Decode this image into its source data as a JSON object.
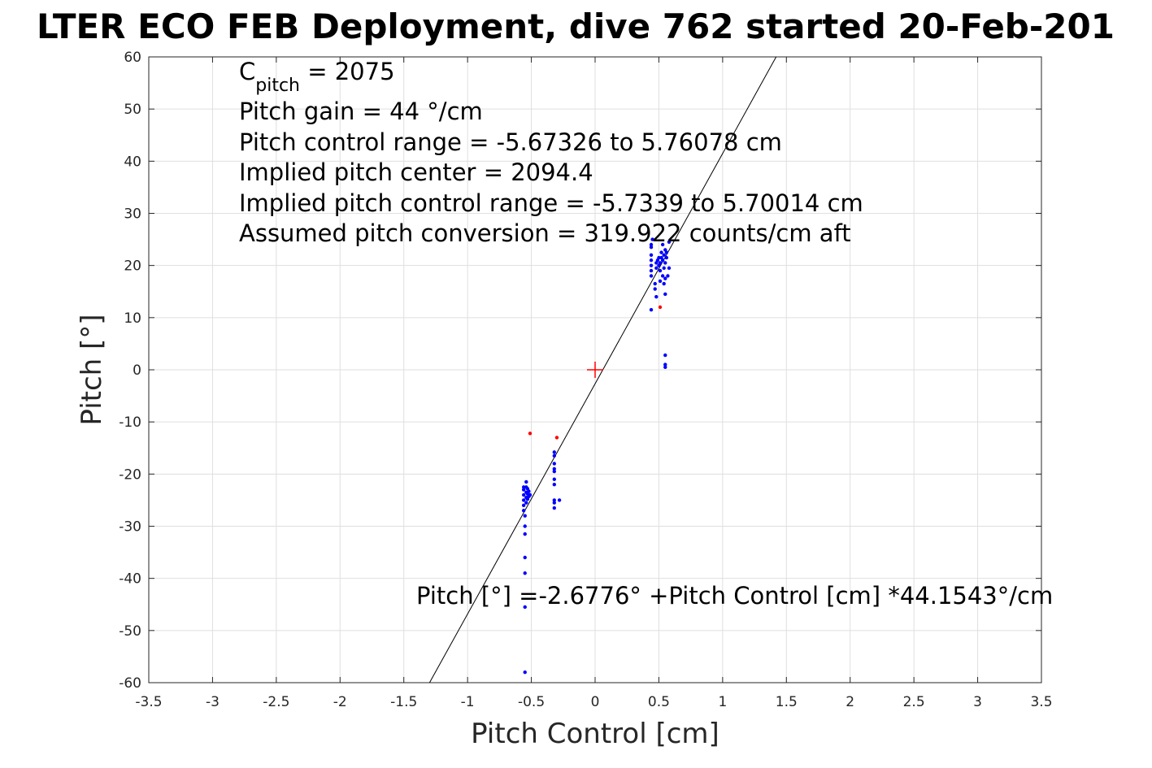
{
  "chart_data": {
    "type": "scatter",
    "title": "LTER ECO FEB Deployment, dive 762 started 20-Feb-201",
    "xlabel": "Pitch Control [cm]",
    "ylabel": "Pitch [°]",
    "xlim": [
      -3.5,
      3.5
    ],
    "ylim": [
      -60,
      60
    ],
    "grid": true,
    "xticks": [
      -3.5,
      -3,
      -2.5,
      -2,
      -1.5,
      -1,
      -0.5,
      0,
      0.5,
      1,
      1.5,
      2,
      2.5,
      3,
      3.5
    ],
    "xtick_labels": [
      "-3.5",
      "-3",
      "-2.5",
      "-2",
      "-1.5",
      "-1",
      "-0.5",
      "0",
      "0.5",
      "1",
      "1.5",
      "2",
      "2.5",
      "3",
      "3.5"
    ],
    "yticks": [
      -60,
      -50,
      -40,
      -30,
      -20,
      -10,
      0,
      10,
      20,
      30,
      40,
      50,
      60
    ],
    "ytick_labels": [
      "-60",
      "-50",
      "-40",
      "-30",
      "-20",
      "-10",
      "0",
      "10",
      "20",
      "30",
      "40",
      "50",
      "60"
    ],
    "annotations": {
      "c_pitch_main": "C",
      "c_pitch_sub": "pitch",
      "c_pitch_value": " = 2075",
      "pitch_gain": "Pitch gain = 44 °/cm",
      "control_range": "Pitch control range = -5.67326 to 5.76078 cm",
      "implied_center": "Implied pitch center = 2094.4",
      "implied_range": "Implied pitch control range = -5.7339 to 5.70014 cm",
      "assumed_conversion": "Assumed pitch conversion = 319.922 counts/cm aft",
      "fit_equation": "Pitch [°] =-2.6776° +Pitch Control [cm] *44.1543°/cm"
    },
    "fit_line": {
      "intercept": -2.6776,
      "slope": 44.1543,
      "color": "#000000"
    },
    "center_marker": {
      "x": 0,
      "y": 0,
      "color": "#ff0000"
    },
    "series": [
      {
        "color": "#0000ff",
        "points": [
          [
            -0.56,
            -22.5
          ],
          [
            -0.56,
            -23.0
          ],
          [
            -0.56,
            -24.0
          ],
          [
            -0.56,
            -25.0
          ],
          [
            -0.56,
            -26.0
          ],
          [
            -0.56,
            -27.0
          ],
          [
            -0.55,
            -28.0
          ],
          [
            -0.55,
            -30.0
          ],
          [
            -0.55,
            -31.5
          ],
          [
            -0.55,
            -36.0
          ],
          [
            -0.55,
            -39.0
          ],
          [
            -0.55,
            -45.5
          ],
          [
            -0.55,
            -58.0
          ],
          [
            -0.54,
            -21.5
          ],
          [
            -0.54,
            -22.5
          ],
          [
            -0.54,
            -23.5
          ],
          [
            -0.54,
            -24.5
          ],
          [
            -0.54,
            -25.5
          ],
          [
            -0.53,
            -22.8
          ],
          [
            -0.53,
            -23.8
          ],
          [
            -0.53,
            -24.8
          ],
          [
            -0.52,
            -23.3
          ],
          [
            -0.52,
            -24.3
          ],
          [
            -0.51,
            -24.0
          ],
          [
            -0.32,
            -15.8
          ],
          [
            -0.32,
            -16.5
          ],
          [
            -0.32,
            -18.0
          ],
          [
            -0.32,
            -19.0
          ],
          [
            -0.32,
            -19.5
          ],
          [
            -0.32,
            -21.0
          ],
          [
            -0.32,
            -22.0
          ],
          [
            -0.32,
            -25.0
          ],
          [
            -0.32,
            -25.5
          ],
          [
            -0.32,
            -26.5
          ],
          [
            -0.28,
            -25.0
          ],
          [
            0.44,
            11.5
          ],
          [
            0.44,
            18.0
          ],
          [
            0.44,
            19.0
          ],
          [
            0.44,
            20.0
          ],
          [
            0.44,
            21.0
          ],
          [
            0.44,
            22.0
          ],
          [
            0.44,
            23.5
          ],
          [
            0.44,
            24.0
          ],
          [
            0.45,
            25.0
          ],
          [
            0.47,
            15.5
          ],
          [
            0.47,
            16.5
          ],
          [
            0.48,
            14.0
          ],
          [
            0.48,
            19.5
          ],
          [
            0.48,
            20.5
          ],
          [
            0.49,
            21.0
          ],
          [
            0.5,
            20.0
          ],
          [
            0.5,
            21.5
          ],
          [
            0.51,
            17.0
          ],
          [
            0.51,
            19.0
          ],
          [
            0.51,
            20.5
          ],
          [
            0.52,
            21.5
          ],
          [
            0.52,
            22.5
          ],
          [
            0.53,
            18.0
          ],
          [
            0.53,
            21.0
          ],
          [
            0.53,
            24.0
          ],
          [
            0.54,
            16.5
          ],
          [
            0.54,
            19.5
          ],
          [
            0.54,
            22.0
          ],
          [
            0.55,
            14.5
          ],
          [
            0.55,
            17.5
          ],
          [
            0.55,
            20.5
          ],
          [
            0.55,
            23.0
          ],
          [
            0.56,
            21.5
          ],
          [
            0.56,
            22.5
          ],
          [
            0.57,
            18.0
          ],
          [
            0.58,
            19.5
          ],
          [
            0.58,
            24.5
          ],
          [
            0.55,
            2.8
          ],
          [
            0.55,
            1.0
          ],
          [
            0.55,
            0.5
          ]
        ]
      },
      {
        "color": "#ff0000",
        "points": [
          [
            -0.51,
            -12.2
          ],
          [
            -0.3,
            -13.0
          ],
          [
            0.51,
            12.0
          ]
        ]
      }
    ]
  }
}
